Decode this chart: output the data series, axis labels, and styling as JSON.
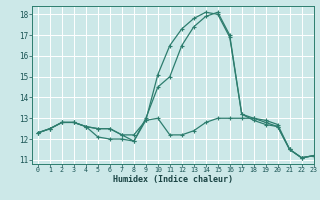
{
  "xlabel": "Humidex (Indice chaleur)",
  "background_color": "#cce8e8",
  "grid_color": "#ffffff",
  "line_color": "#2d7d6e",
  "xlim": [
    -0.5,
    23
  ],
  "ylim": [
    10.8,
    18.4
  ],
  "yticks": [
    11,
    12,
    13,
    14,
    15,
    16,
    17,
    18
  ],
  "xticks": [
    0,
    1,
    2,
    3,
    4,
    5,
    6,
    7,
    8,
    9,
    10,
    11,
    12,
    13,
    14,
    15,
    16,
    17,
    18,
    19,
    20,
    21,
    22,
    23
  ],
  "series1": [
    12.3,
    12.5,
    12.8,
    12.8,
    12.6,
    12.5,
    12.5,
    12.2,
    11.9,
    13.0,
    14.5,
    15.0,
    16.5,
    17.4,
    17.9,
    18.1,
    17.0,
    13.2,
    12.9,
    12.7,
    12.6,
    11.5,
    11.1,
    11.2
  ],
  "series2": [
    12.3,
    12.5,
    12.8,
    12.8,
    12.6,
    12.5,
    12.5,
    12.2,
    12.2,
    12.9,
    15.1,
    16.5,
    17.3,
    17.8,
    18.1,
    18.0,
    16.9,
    13.2,
    13.0,
    12.8,
    12.6,
    11.5,
    11.1,
    11.2
  ],
  "series3": [
    12.3,
    12.5,
    12.8,
    12.8,
    12.6,
    12.1,
    12.0,
    12.0,
    11.9,
    12.9,
    13.0,
    12.2,
    12.2,
    12.4,
    12.8,
    13.0,
    13.0,
    13.0,
    13.0,
    12.9,
    12.7,
    11.5,
    11.1,
    11.2
  ]
}
